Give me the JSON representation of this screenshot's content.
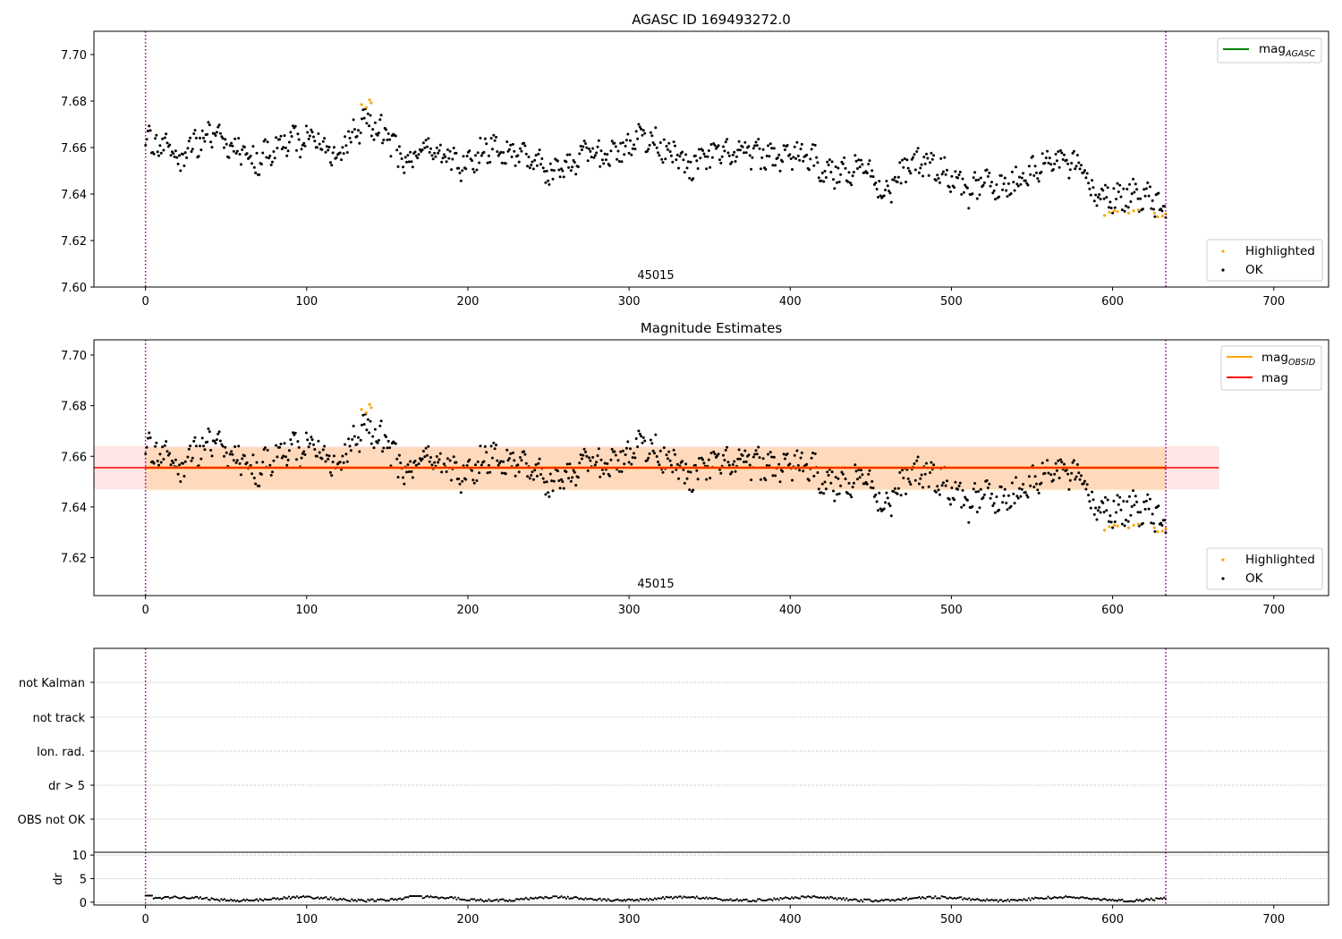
{
  "chart_data": [
    {
      "type": "scatter",
      "title": "AGASC ID 169493272.0",
      "xlim": [
        -32,
        734
      ],
      "ylim": [
        7.6,
        7.71
      ],
      "xticks": [
        0,
        100,
        200,
        300,
        400,
        500,
        600,
        700
      ],
      "yticks": [
        7.6,
        7.62,
        7.64,
        7.66,
        7.68,
        7.7
      ],
      "obsid_label": "45015",
      "vlines": [
        0,
        633
      ],
      "legend_lines": [
        {
          "name": "mag",
          "sub": "AGASC",
          "color": "#008000"
        }
      ],
      "legend_points": [
        {
          "name": "Highlighted",
          "color": "#ffa500"
        },
        {
          "name": "OK",
          "color": "#000000"
        }
      ],
      "highlighted": [
        [
          134,
          7.6785
        ],
        [
          137,
          7.6772
        ],
        [
          139,
          7.6805
        ],
        [
          140,
          7.6792
        ],
        [
          595,
          7.6308
        ],
        [
          598,
          7.6322
        ],
        [
          601,
          7.6328
        ],
        [
          603,
          7.6325
        ],
        [
          610,
          7.6318
        ],
        [
          613,
          7.6328
        ],
        [
          616,
          7.6332
        ],
        [
          626,
          7.6318
        ],
        [
          628,
          7.6302
        ],
        [
          631,
          7.6305
        ],
        [
          633,
          7.6315
        ]
      ]
    },
    {
      "type": "scatter",
      "title": "Magnitude Estimates",
      "xlim": [
        -32,
        734
      ],
      "ylim": [
        7.605,
        7.706
      ],
      "xticks": [
        0,
        100,
        200,
        300,
        400,
        500,
        600,
        700
      ],
      "yticks": [
        7.62,
        7.64,
        7.66,
        7.68,
        7.7
      ],
      "obsid_label": "45015",
      "vlines": [
        0,
        633
      ],
      "mag_level": 7.6555,
      "mag_band": [
        7.647,
        7.664
      ],
      "mag_obsid_band": [
        7.6465,
        7.6635
      ],
      "band_xrange": [
        -32,
        666
      ],
      "mag_obsid_xrange": [
        0,
        633
      ],
      "legend_lines": [
        {
          "name": "mag",
          "sub": "OBSID",
          "color": "#ffa500"
        },
        {
          "name": "mag",
          "sub": "",
          "color": "#ff0000"
        }
      ],
      "legend_points": [
        {
          "name": "Highlighted",
          "color": "#ffa500"
        },
        {
          "name": "OK",
          "color": "#000000"
        }
      ]
    },
    {
      "type": "scatter",
      "title": "",
      "xlim": [
        -32,
        734
      ],
      "categories": [
        "not Kalman",
        "not track",
        "Ion. rad.",
        "dr > 5",
        "OBS not OK"
      ],
      "vlines": [
        0,
        633
      ]
    },
    {
      "type": "scatter",
      "title": "",
      "ylabel": "dr",
      "xlim": [
        -32,
        734
      ],
      "ylim": [
        -0.6,
        10.6
      ],
      "xticks": [
        0,
        100,
        200,
        300,
        400,
        500,
        600,
        700
      ],
      "yticks": [
        0,
        5,
        10
      ],
      "vlines": [
        0,
        633
      ],
      "series_note_mean": 0.7
    }
  ]
}
